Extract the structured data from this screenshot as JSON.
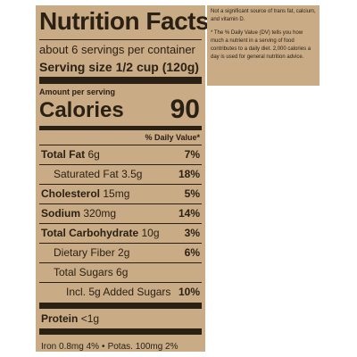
{
  "header": {
    "title": "Nutrition Facts",
    "servings": "about 6 servings per container",
    "serving_size_label": "Serving size",
    "serving_size": "1/2 cup (120g)"
  },
  "amount_per_serving": "Amount per serving",
  "calories": {
    "label": "Calories",
    "value": "90"
  },
  "dv_header": "% Daily Value*",
  "nutrients": [
    {
      "name": "Total Fat",
      "amount": "6g",
      "dv": "7%",
      "level": 0
    },
    {
      "name": "Saturated Fat",
      "amount": "3.5g",
      "dv": "18%",
      "level": 1
    },
    {
      "name": "Cholesterol",
      "amount": "15mg",
      "dv": "5%",
      "level": 0
    },
    {
      "name": "Sodium",
      "amount": "320mg",
      "dv": "14%",
      "level": 0
    },
    {
      "name": "Total Carbohydrate",
      "amount": "10g",
      "dv": "3%",
      "level": 0
    },
    {
      "name": "Dietary Fiber",
      "amount": "2g",
      "dv": "6%",
      "level": 1
    },
    {
      "name": "Total Sugars",
      "amount": "6g",
      "level": 1
    },
    {
      "name": "Incl. 5g Added Sugars",
      "dv": "10%",
      "level": 2
    }
  ],
  "protein": {
    "name": "Protein",
    "amount": "<1g"
  },
  "minerals": [
    "Iron 0.8mg 4%",
    "Potas. 100mg 2%"
  ],
  "notes": [
    "Not a significant source of trans fat, calcium, and vitamin D.",
    "* The % Daily Value (DV) tells you how much a nutrient in a serving of food contributes to a daily diet. 2,000 calories a day is used for general nutrition advice."
  ]
}
